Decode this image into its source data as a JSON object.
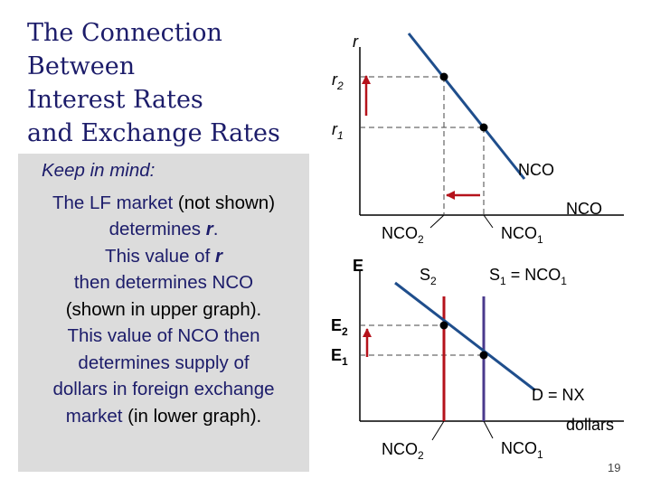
{
  "title": {
    "lines": [
      "The Connection",
      "Between",
      "Interest Rates",
      "and Exchange Rates"
    ]
  },
  "note": {
    "heading": "Keep in mind:",
    "l1a": "The LF market",
    "l1b": " (not shown)",
    "l2a": "determines ",
    "l2b": "r",
    "l2c": ".",
    "l3a": "This value of ",
    "l3b": "r",
    "l4": "then determines NCO",
    "l5": "(shown in upper graph).",
    "l6": "This value of NCO then",
    "l7": "determines supply of",
    "l8": "dollars in foreign exchange",
    "l9a": "market",
    "l9b": " (in lower graph)."
  },
  "upper_graph": {
    "y_axis_label": "r",
    "r2_base": "r",
    "r2_sub": "2",
    "r1_base": "r",
    "r1_sub": "1",
    "curve_label": "NCO",
    "x_axis_label": "NCO",
    "nco2_base": "NCO",
    "nco2_sub": "2",
    "nco1_base": "NCO",
    "nco1_sub": "1"
  },
  "lower_graph": {
    "y_axis_label": "E",
    "e2_base": "E",
    "e2_sub": "2",
    "e1_base": "E",
    "e1_sub": "1",
    "s2_base": "S",
    "s2_sub": "2",
    "s1_base": "S",
    "s1_sub": "1",
    "s1_eq": " = NCO",
    "s1_eq_sub": "1",
    "demand_label": "D = NX",
    "x_axis_label": "dollars",
    "nco2_base": "NCO",
    "nco2_sub": "2",
    "nco1_base": "NCO",
    "nco1_sub": "1"
  },
  "page_number": "19",
  "colors": {
    "title_text": "#1c1c6a",
    "note_background": "#dcdcdc",
    "curve": "#1f4e8c",
    "shift_arrow": "#b5121b",
    "supply_nco2_line": "#b5121b",
    "supply_nco1_line": "#4a3a8c"
  }
}
